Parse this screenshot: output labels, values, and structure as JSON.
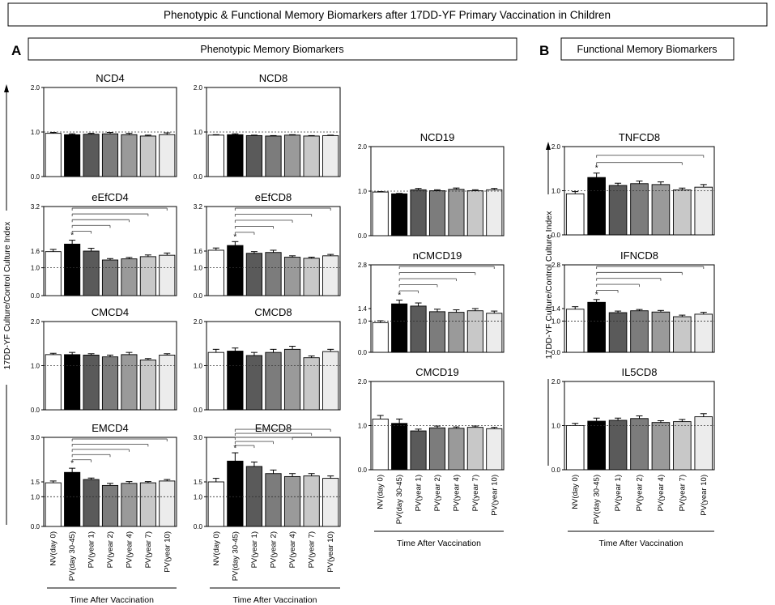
{
  "figure": {
    "title": "Phenotypic & Functional Memory Biomarkers after 17DD-YF Primary Vaccination in Children",
    "panel_a_letter": "A",
    "panel_a_title": "Phenotypic Memory Biomarkers",
    "panel_b_letter": "B",
    "panel_b_title": "Functional Memory Biomarkers",
    "y_axis_label": "17DD-YF Culture/Control Culture Index",
    "x_axis_label": "Time After Vaccination",
    "categories": [
      "NV(day 0)",
      "PV(day 30-45)",
      "PV(year 1)",
      "PV(year 2)",
      "PV(year 4)",
      "PV(year 7)",
      "PV(year 10)"
    ],
    "bar_colors": [
      "#ffffff",
      "#000000",
      "#5a5a5a",
      "#7c7c7c",
      "#9a9a9a",
      "#c8c8c8",
      "#ececec"
    ],
    "significance_marker": "*"
  },
  "chart_data": [
    {
      "id": "ncd4",
      "type": "bar",
      "title": "NCD4",
      "ylim": [
        0,
        2.0
      ],
      "yticks": [
        "0.0",
        "1.0",
        "2.0"
      ],
      "tick_values": [
        0,
        1.0,
        2.0
      ],
      "reference_line": 1.0,
      "values": [
        0.97,
        0.94,
        0.95,
        0.96,
        0.94,
        0.91,
        0.94
      ],
      "errors": [
        0.02,
        0.02,
        0.02,
        0.03,
        0.03,
        0.02,
        0.04
      ],
      "significant": [],
      "comparisons": []
    },
    {
      "id": "ncd8",
      "type": "bar",
      "title": "NCD8",
      "ylim": [
        0,
        2.0
      ],
      "yticks": [
        "0.0",
        "1.0",
        "2.0"
      ],
      "tick_values": [
        0,
        1.0,
        2.0
      ],
      "reference_line": 1.0,
      "values": [
        0.93,
        0.94,
        0.92,
        0.91,
        0.93,
        0.91,
        0.92
      ],
      "errors": [
        0.01,
        0.02,
        0.01,
        0.01,
        0.01,
        0.01,
        0.01
      ],
      "significant": [],
      "comparisons": []
    },
    {
      "id": "ncd19",
      "type": "bar",
      "title": "NCD19",
      "ylim": [
        0,
        2.0
      ],
      "yticks": [
        "0.0",
        "1.0",
        "2.0"
      ],
      "tick_values": [
        0,
        1.0,
        2.0
      ],
      "reference_line": 1.0,
      "values": [
        0.98,
        0.94,
        1.03,
        1.01,
        1.04,
        1.01,
        1.03
      ],
      "errors": [
        0.01,
        0.01,
        0.03,
        0.02,
        0.03,
        0.02,
        0.03
      ],
      "significant": [],
      "comparisons": []
    },
    {
      "id": "eefcd4",
      "type": "bar",
      "title": "eEfCD4",
      "ylim": [
        0,
        3.2
      ],
      "yticks": [
        "0.0",
        "1.0",
        "1.6",
        "3.2"
      ],
      "tick_values": [
        0,
        1.0,
        1.6,
        3.2
      ],
      "reference_line": 1.0,
      "values": [
        1.58,
        1.85,
        1.6,
        1.28,
        1.32,
        1.4,
        1.45
      ],
      "errors": [
        0.08,
        0.14,
        0.1,
        0.05,
        0.05,
        0.06,
        0.08
      ],
      "significant": [
        1
      ],
      "comparisons": [
        2,
        3,
        4,
        5,
        6
      ]
    },
    {
      "id": "eefcd8",
      "type": "bar",
      "title": "eEfCD8",
      "ylim": [
        0,
        3.2
      ],
      "yticks": [
        "0.0",
        "1.0",
        "1.6",
        "3.2"
      ],
      "tick_values": [
        0,
        1.0,
        1.6,
        3.2
      ],
      "reference_line": 1.0,
      "values": [
        1.63,
        1.8,
        1.52,
        1.55,
        1.38,
        1.34,
        1.43
      ],
      "errors": [
        0.08,
        0.14,
        0.06,
        0.08,
        0.05,
        0.04,
        0.05
      ],
      "significant": [
        1
      ],
      "comparisons": [
        2,
        3,
        4,
        5,
        6
      ]
    },
    {
      "id": "ncmcd19",
      "type": "bar",
      "title": "nCMCD19",
      "ylim": [
        0,
        2.8
      ],
      "yticks": [
        "0.0",
        "1.0",
        "1.4",
        "2.8"
      ],
      "tick_values": [
        0,
        1.0,
        1.4,
        2.8
      ],
      "reference_line": 1.0,
      "values": [
        0.95,
        1.55,
        1.48,
        1.3,
        1.28,
        1.33,
        1.25
      ],
      "errors": [
        0.06,
        0.12,
        0.1,
        0.08,
        0.08,
        0.07,
        0.07
      ],
      "significant": [
        1
      ],
      "comparisons": [
        2,
        3,
        4,
        5,
        6
      ]
    },
    {
      "id": "cmcd4",
      "type": "bar",
      "title": "CMCD4",
      "ylim": [
        0,
        2.0
      ],
      "yticks": [
        "0.0",
        "1.0",
        "2.0"
      ],
      "tick_values": [
        0,
        1.0,
        2.0
      ],
      "reference_line": 1.0,
      "values": [
        1.25,
        1.25,
        1.24,
        1.2,
        1.25,
        1.13,
        1.24
      ],
      "errors": [
        0.03,
        0.05,
        0.03,
        0.04,
        0.05,
        0.03,
        0.03
      ],
      "significant": [],
      "comparisons": []
    },
    {
      "id": "cmcd8",
      "type": "bar",
      "title": "CMCD8",
      "ylim": [
        0,
        2.0
      ],
      "yticks": [
        "0.0",
        "1.0",
        "2.0"
      ],
      "tick_values": [
        0,
        1.0,
        2.0
      ],
      "reference_line": 1.0,
      "values": [
        1.3,
        1.33,
        1.23,
        1.3,
        1.37,
        1.18,
        1.32
      ],
      "errors": [
        0.07,
        0.07,
        0.07,
        0.07,
        0.07,
        0.04,
        0.05
      ],
      "significant": [],
      "comparisons": []
    },
    {
      "id": "cmcd19",
      "type": "bar",
      "title": "CMCD19",
      "ylim": [
        0,
        2.0
      ],
      "yticks": [
        "0.0",
        "1.0",
        "2.0"
      ],
      "tick_values": [
        0,
        1.0,
        2.0
      ],
      "reference_line": 1.0,
      "values": [
        1.15,
        1.05,
        0.88,
        0.95,
        0.94,
        0.96,
        0.93
      ],
      "errors": [
        0.08,
        0.1,
        0.04,
        0.04,
        0.03,
        0.03,
        0.03
      ],
      "significant": [],
      "comparisons": []
    },
    {
      "id": "emcd4",
      "type": "bar",
      "title": "EMCD4",
      "ylim": [
        0,
        3.0
      ],
      "yticks": [
        "0.0",
        "1.0",
        "1.5",
        "3.0"
      ],
      "tick_values": [
        0,
        1.0,
        1.5,
        3.0
      ],
      "reference_line": 1.0,
      "values": [
        1.47,
        1.82,
        1.58,
        1.38,
        1.45,
        1.47,
        1.53
      ],
      "errors": [
        0.06,
        0.14,
        0.05,
        0.07,
        0.06,
        0.04,
        0.05
      ],
      "significant": [
        1
      ],
      "comparisons": [
        2,
        3,
        4,
        5,
        6
      ]
    },
    {
      "id": "emcd8",
      "type": "bar",
      "title": "EMCD8",
      "ylim": [
        0,
        3.0
      ],
      "yticks": [
        "0.0",
        "1.0",
        "1.5",
        "3.0"
      ],
      "tick_values": [
        0,
        1.0,
        1.5,
        3.0
      ],
      "reference_line": 1.0,
      "values": [
        1.5,
        2.2,
        2.02,
        1.78,
        1.68,
        1.7,
        1.62
      ],
      "errors": [
        0.12,
        0.28,
        0.15,
        0.12,
        0.1,
        0.08,
        0.08
      ],
      "significant": [
        1
      ],
      "comparisons": [
        2,
        3,
        4,
        5,
        6
      ]
    },
    {
      "id": "tnfcd8",
      "type": "bar",
      "title": "TNFCD8",
      "ylim": [
        0,
        2.0
      ],
      "yticks": [
        "0.0",
        "1.0",
        "2.0"
      ],
      "tick_values": [
        0,
        1.0,
        2.0
      ],
      "reference_line": 1.0,
      "values": [
        0.93,
        1.3,
        1.12,
        1.16,
        1.14,
        1.02,
        1.08
      ],
      "errors": [
        0.05,
        0.1,
        0.05,
        0.06,
        0.06,
        0.04,
        0.06
      ],
      "significant": [
        1
      ],
      "comparisons": [
        5,
        6
      ]
    },
    {
      "id": "ifncd8",
      "type": "bar",
      "title": "IFNCD8",
      "ylim": [
        0,
        2.8
      ],
      "yticks": [
        "0.0",
        "1.0",
        "1.4",
        "2.8"
      ],
      "tick_values": [
        0,
        1.0,
        1.4,
        2.8
      ],
      "reference_line": 1.0,
      "values": [
        1.38,
        1.6,
        1.27,
        1.33,
        1.29,
        1.14,
        1.22
      ],
      "errors": [
        0.08,
        0.09,
        0.05,
        0.04,
        0.05,
        0.05,
        0.06
      ],
      "significant": [
        1
      ],
      "comparisons": [
        2,
        3,
        4,
        5,
        6
      ]
    },
    {
      "id": "il5cd8",
      "type": "bar",
      "title": "IL5CD8",
      "ylim": [
        0,
        2.0
      ],
      "yticks": [
        "0.0",
        "1.0",
        "2.0"
      ],
      "tick_values": [
        0,
        1.0,
        2.0
      ],
      "reference_line": 1.0,
      "values": [
        1.0,
        1.1,
        1.12,
        1.16,
        1.07,
        1.09,
        1.2
      ],
      "errors": [
        0.05,
        0.07,
        0.05,
        0.06,
        0.04,
        0.05,
        0.07
      ],
      "significant": [],
      "comparisons": []
    }
  ]
}
